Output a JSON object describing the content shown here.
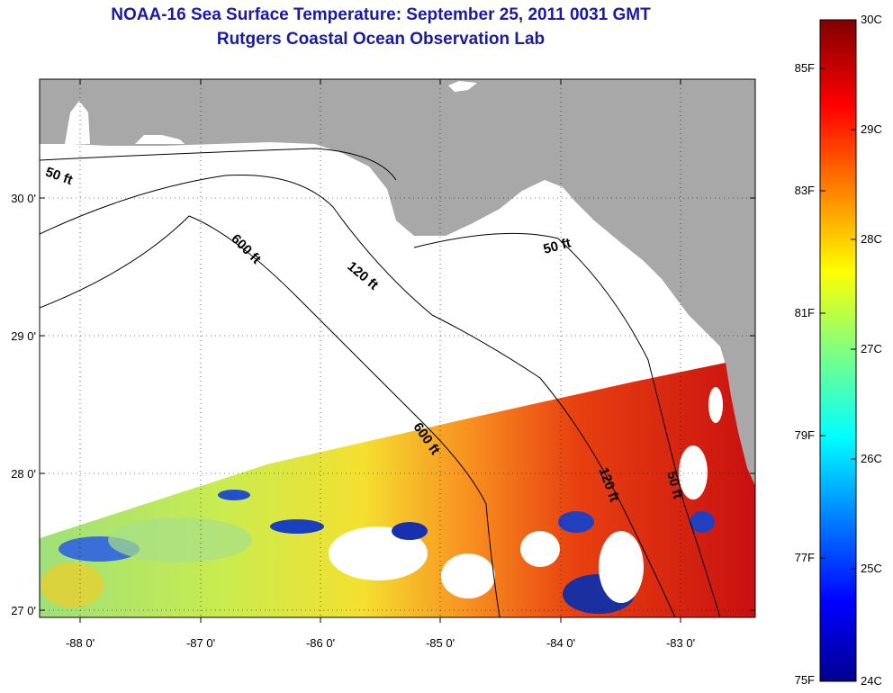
{
  "header": {
    "title": "NOAA-16 Sea Surface Temperature:  September 25, 2011 0031 GMT",
    "subtitle": "Rutgers Coastal Ocean Observation Lab"
  },
  "map": {
    "land_color": "#a8a8a8",
    "missing_color": "#ffffff",
    "lon_labels": [
      "-88 0'",
      "-87 0'",
      "-86 0'",
      "-85 0'",
      "-84 0'",
      "-83 0'"
    ],
    "lat_labels": [
      "30 0'",
      "29 0'",
      "28 0'",
      "27 0'"
    ],
    "depth_contours": [
      "50 ft",
      "600 ft",
      "120 ft",
      "50 ft",
      "600 ft",
      "120 ft",
      "50 ft"
    ]
  },
  "colorbar": {
    "fahrenheit_labels": [
      "85F",
      "83F",
      "81F",
      "79F",
      "77F",
      "75F"
    ],
    "celsius_labels": [
      "30C",
      "29C",
      "28C",
      "27C",
      "26C",
      "25C",
      "24C"
    ]
  }
}
